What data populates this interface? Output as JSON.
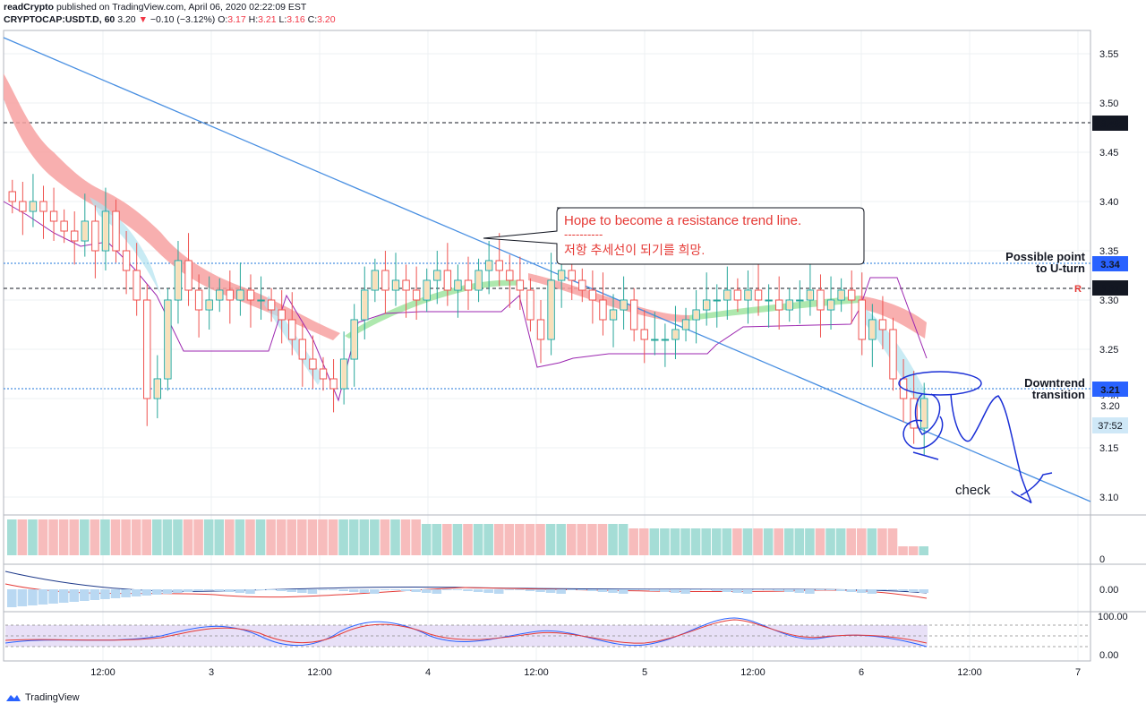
{
  "header": {
    "author": "readCrypto",
    "published_text": "published on TradingView.com, April 06, 2020 02:22:09 EST",
    "symbol": "CRYPTOCAP:USDT.D, 60",
    "last": "3.20",
    "change": "−0.10 (−3.12%)",
    "o_label": "O:",
    "o": "3.17",
    "h_label": "H:",
    "h": "3.21",
    "l_label": "L:",
    "l": "3.16",
    "c_label": "C:",
    "c": "3.20"
  },
  "footer": {
    "brand": "TradingView"
  },
  "colors": {
    "up": "#26a69a",
    "down": "#ef5350",
    "trend": "#4a90e2",
    "annotation_red": "#e53935",
    "pen": "#1a2fd6"
  },
  "price_tags": {
    "p348": "3.48",
    "p334": "3.34",
    "p331": "3.31",
    "p321": "3.21",
    "p320": "3.20",
    "timer": "37:52"
  },
  "annotations": {
    "callout_line1": "Hope to become a resistance trend line.",
    "callout_line2": "----------",
    "callout_line3": "저항 추세선이 되기를 희망.",
    "possible_1": "Possible point",
    "possible_2": "to U-turn",
    "downtrend_1": "Downtrend",
    "downtrend_2": "transition",
    "check": "check",
    "r_marker": "R"
  },
  "chart_data": [
    {
      "type": "candlestick",
      "symbol": "CRYPTOCAP:USDT.D",
      "interval": "60",
      "ylim": [
        3.08,
        3.57
      ],
      "y_ticks": [
        "3.10",
        "3.15",
        "3.20",
        "3.25",
        "3.30",
        "3.35",
        "3.40",
        "3.45",
        "3.50",
        "3.55"
      ],
      "x_ticks": [
        "12:00",
        "3",
        "12:00",
        "4",
        "12:00",
        "5",
        "12:00",
        "6",
        "12:00",
        "7"
      ],
      "horizontal_levels": [
        3.48,
        3.34,
        3.31,
        3.21
      ],
      "close_series": [
        3.4,
        3.39,
        3.4,
        3.39,
        3.38,
        3.37,
        3.36,
        3.38,
        3.35,
        3.39,
        3.35,
        3.33,
        3.3,
        3.2,
        3.22,
        3.3,
        3.34,
        3.31,
        3.29,
        3.3,
        3.31,
        3.3,
        3.31,
        3.3,
        3.3,
        3.29,
        3.28,
        3.26,
        3.24,
        3.23,
        3.22,
        3.21,
        3.24,
        3.28,
        3.31,
        3.33,
        3.31,
        3.32,
        3.31,
        3.3,
        3.32,
        3.33,
        3.31,
        3.32,
        3.31,
        3.33,
        3.34,
        3.33,
        3.32,
        3.31,
        3.28,
        3.26,
        3.32,
        3.33,
        3.32,
        3.31,
        3.3,
        3.28,
        3.29,
        3.3,
        3.27,
        3.26,
        3.26,
        3.26,
        3.27,
        3.28,
        3.29,
        3.3,
        3.3,
        3.31,
        3.3,
        3.31,
        3.3,
        3.3,
        3.29,
        3.3,
        3.3,
        3.31,
        3.29,
        3.3,
        3.31,
        3.3,
        3.26,
        3.28,
        3.27,
        3.22,
        3.2,
        3.17,
        3.2
      ],
      "last": 3.2,
      "last_time_label": "April 06, 2020 02:22:09 EST"
    },
    {
      "type": "bar",
      "panel": "volume",
      "y_ticks": [
        "0"
      ]
    },
    {
      "type": "line",
      "panel": "macd",
      "y_ticks": [
        "0.00"
      ]
    },
    {
      "type": "line",
      "panel": "stochastic_rsi",
      "y_ticks": [
        "100.00",
        "0.00"
      ]
    }
  ]
}
